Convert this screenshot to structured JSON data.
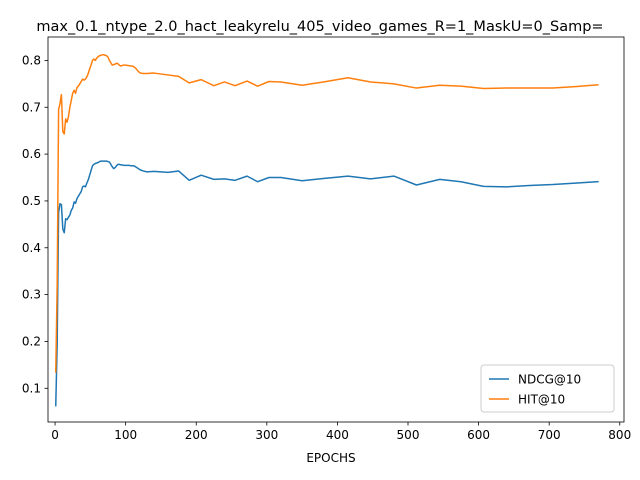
{
  "chart_data": {
    "type": "line",
    "title": "max_0.1_ntype_2.0_hact_leakyrelu_405_video_games_R=1_MaskU=0_Samp=",
    "xlabel": "EPOCHS",
    "ylabel": "",
    "xlim": [
      -10,
      806
    ],
    "ylim": [
      0.028,
      0.85
    ],
    "xticks": [
      0,
      100,
      200,
      300,
      400,
      500,
      600,
      700,
      800
    ],
    "yticks": [
      0.1,
      0.2,
      0.3,
      0.4,
      0.5,
      0.6,
      0.7,
      0.8
    ],
    "grid": false,
    "legend_position": "lower-right",
    "series": [
      {
        "name": "NDCG@10",
        "color": "#1f77b4",
        "x": [
          1,
          3,
          5,
          7,
          9,
          11,
          13,
          15,
          17,
          19,
          21,
          23,
          25,
          27,
          29,
          31,
          33,
          35,
          37,
          39,
          41,
          43,
          45,
          47,
          49,
          51,
          53,
          55,
          57,
          59,
          61,
          63,
          65,
          67,
          69,
          71,
          73,
          75,
          77,
          79,
          81,
          83,
          85,
          87,
          89,
          91,
          93,
          95,
          97,
          99,
          101,
          103,
          105,
          107,
          109,
          111,
          113,
          115,
          117,
          119,
          121,
          125,
          130,
          140,
          160,
          175,
          190,
          207,
          225,
          240,
          255,
          272,
          287,
          303,
          320,
          350,
          380,
          415,
          447,
          480,
          512,
          545,
          575,
          607,
          640,
          672,
          705,
          737,
          769
        ],
        "values": [
          0.063,
          0.195,
          0.475,
          0.494,
          0.492,
          0.44,
          0.432,
          0.462,
          0.46,
          0.465,
          0.47,
          0.48,
          0.485,
          0.498,
          0.495,
          0.505,
          0.51,
          0.515,
          0.52,
          0.53,
          0.532,
          0.53,
          0.538,
          0.545,
          0.555,
          0.565,
          0.575,
          0.578,
          0.58,
          0.581,
          0.582,
          0.584,
          0.585,
          0.585,
          0.585,
          0.585,
          0.585,
          0.584,
          0.583,
          0.578,
          0.573,
          0.569,
          0.571,
          0.575,
          0.578,
          0.578,
          0.577,
          0.577,
          0.576,
          0.576,
          0.576,
          0.576,
          0.576,
          0.575,
          0.575,
          0.575,
          0.574,
          0.572,
          0.57,
          0.568,
          0.566,
          0.564,
          0.562,
          0.563,
          0.561,
          0.564,
          0.544,
          0.555,
          0.546,
          0.547,
          0.544,
          0.553,
          0.541,
          0.55,
          0.55,
          0.543,
          0.548,
          0.553,
          0.547,
          0.553,
          0.534,
          0.546,
          0.541,
          0.531,
          0.53,
          0.533,
          0.535,
          0.538,
          0.541
        ]
      },
      {
        "name": "HIT@10",
        "color": "#ff7f0e",
        "x": [
          1,
          3,
          5,
          7,
          9,
          11,
          13,
          15,
          17,
          19,
          21,
          23,
          25,
          27,
          29,
          31,
          33,
          35,
          37,
          39,
          41,
          43,
          45,
          47,
          49,
          51,
          53,
          55,
          57,
          59,
          61,
          63,
          65,
          67,
          69,
          71,
          73,
          75,
          77,
          79,
          81,
          83,
          85,
          87,
          89,
          91,
          93,
          95,
          97,
          99,
          101,
          103,
          105,
          107,
          109,
          111,
          113,
          115,
          117,
          119,
          121,
          125,
          130,
          140,
          160,
          175,
          190,
          207,
          225,
          240,
          255,
          272,
          287,
          303,
          320,
          350,
          380,
          415,
          447,
          480,
          512,
          545,
          575,
          607,
          640,
          672,
          705,
          737,
          769
        ],
        "values": [
          0.135,
          0.32,
          0.695,
          0.708,
          0.727,
          0.648,
          0.643,
          0.675,
          0.668,
          0.68,
          0.7,
          0.715,
          0.73,
          0.736,
          0.73,
          0.742,
          0.745,
          0.75,
          0.755,
          0.76,
          0.758,
          0.76,
          0.765,
          0.772,
          0.782,
          0.79,
          0.8,
          0.803,
          0.8,
          0.805,
          0.808,
          0.81,
          0.811,
          0.812,
          0.812,
          0.811,
          0.81,
          0.807,
          0.8,
          0.795,
          0.79,
          0.791,
          0.792,
          0.794,
          0.793,
          0.79,
          0.788,
          0.789,
          0.79,
          0.79,
          0.79,
          0.789,
          0.789,
          0.788,
          0.788,
          0.787,
          0.785,
          0.782,
          0.778,
          0.775,
          0.773,
          0.772,
          0.772,
          0.773,
          0.769,
          0.766,
          0.752,
          0.759,
          0.746,
          0.754,
          0.746,
          0.756,
          0.745,
          0.755,
          0.754,
          0.747,
          0.754,
          0.763,
          0.754,
          0.75,
          0.741,
          0.747,
          0.745,
          0.74,
          0.741,
          0.741,
          0.741,
          0.744,
          0.748
        ]
      }
    ]
  }
}
